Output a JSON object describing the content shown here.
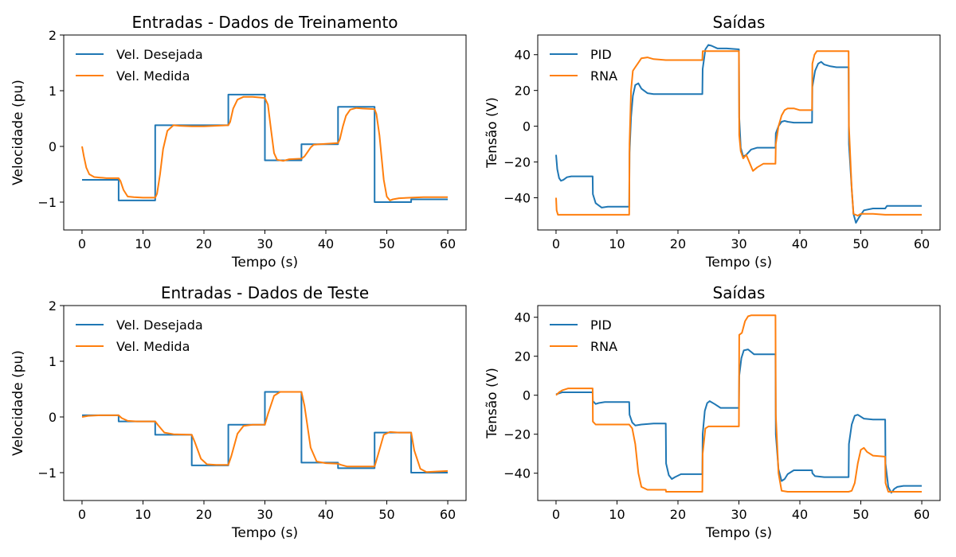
{
  "colors": {
    "series_1": "#1f77b4",
    "series_2": "#ff7f0e",
    "axes": "#000000",
    "background": "#ffffff"
  },
  "chart_data": [
    {
      "type": "line",
      "title": "Entradas - Dados de Treinamento",
      "xlabel": "Tempo (s)",
      "ylabel": "Velocidade (pu)",
      "xlim": [
        -3,
        63
      ],
      "ylim": [
        -1.5,
        2
      ],
      "xticks": [
        0,
        10,
        20,
        30,
        40,
        50,
        60
      ],
      "yticks": [
        -1,
        0,
        1,
        2
      ],
      "grid": false,
      "legend": "top-left",
      "series": [
        {
          "name": "Vel. Desejada",
          "color": "#1f77b4",
          "style": "step",
          "x": [
            0,
            6,
            12,
            24,
            30,
            36,
            42,
            48,
            54,
            60
          ],
          "y": [
            -0.6,
            -0.97,
            0.38,
            0.93,
            -0.25,
            0.04,
            0.71,
            -1.0,
            -0.95,
            -0.95
          ]
        },
        {
          "name": "Vel. Medida",
          "color": "#ff7f0e",
          "style": "line",
          "x": [
            0,
            0.3,
            0.7,
            1.2,
            2,
            3,
            4,
            6,
            6.3,
            6.8,
            7.5,
            8.5,
            10,
            12,
            12.3,
            12.8,
            13.3,
            14,
            15,
            16,
            18,
            20,
            24,
            24.3,
            24.8,
            25.5,
            26.5,
            28,
            30,
            30.5,
            31,
            31.5,
            32,
            33,
            34,
            36,
            36.5,
            37,
            37.5,
            38,
            39,
            42,
            42.3,
            42.8,
            43.3,
            44,
            45,
            46,
            48,
            48.3,
            48.8,
            49.5,
            50,
            50.5,
            51,
            52,
            54,
            56,
            58,
            60
          ],
          "y": [
            0.0,
            -0.18,
            -0.38,
            -0.5,
            -0.55,
            -0.56,
            -0.57,
            -0.57,
            -0.62,
            -0.78,
            -0.9,
            -0.91,
            -0.92,
            -0.92,
            -0.85,
            -0.5,
            -0.05,
            0.28,
            0.38,
            0.37,
            0.36,
            0.36,
            0.38,
            0.44,
            0.68,
            0.84,
            0.89,
            0.89,
            0.87,
            0.75,
            0.3,
            -0.12,
            -0.24,
            -0.26,
            -0.23,
            -0.22,
            -0.18,
            -0.1,
            -0.02,
            0.03,
            0.04,
            0.06,
            0.13,
            0.36,
            0.55,
            0.66,
            0.69,
            0.68,
            0.67,
            0.58,
            0.2,
            -0.6,
            -0.9,
            -0.97,
            -0.95,
            -0.93,
            -0.92,
            -0.91,
            -0.91,
            -0.91
          ]
        }
      ]
    },
    {
      "type": "line",
      "title": "Saídas",
      "xlabel": "Tempo (s)",
      "ylabel": "Tensão (V)",
      "xlim": [
        -3,
        63
      ],
      "ylim": [
        -58,
        51
      ],
      "xticks": [
        0,
        10,
        20,
        30,
        40,
        50,
        60
      ],
      "yticks": [
        -40,
        -20,
        0,
        20,
        40
      ],
      "grid": false,
      "legend": "top-left",
      "series": [
        {
          "name": "PID",
          "color": "#1f77b4",
          "style": "line",
          "x": [
            0,
            0.2,
            0.5,
            0.8,
            1.2,
            1.8,
            2.5,
            3.5,
            6,
            6.05,
            6.5,
            7.5,
            8.5,
            10,
            12,
            12.05,
            12.3,
            12.6,
            13,
            13.5,
            14,
            15,
            16,
            18,
            20,
            24,
            24.05,
            24.5,
            25,
            25.5,
            26.5,
            28,
            30,
            30.05,
            30.3,
            30.7,
            31.2,
            32,
            33,
            34,
            36,
            36.05,
            36.5,
            37,
            37.5,
            38,
            39,
            40,
            42,
            42.05,
            42.5,
            43,
            43.5,
            44,
            45,
            46,
            48,
            48.05,
            48.5,
            48.8,
            49.2,
            49.7,
            50.5,
            52,
            54,
            54.3,
            56,
            58,
            60
          ],
          "y": [
            -16,
            -24,
            -29,
            -30.5,
            -30,
            -28.5,
            -28,
            -28,
            -28,
            -38,
            -43,
            -45.5,
            -45,
            -45,
            -45,
            -15,
            5,
            17,
            23,
            24,
            21,
            18.5,
            18,
            18,
            18,
            18,
            32,
            43,
            45.5,
            45,
            43.5,
            43.5,
            43,
            5,
            -12,
            -17,
            -16,
            -13,
            -12,
            -12,
            -12,
            -4,
            0,
            2.5,
            3,
            2.5,
            2,
            2,
            2,
            22,
            31,
            35,
            36,
            34.5,
            33.5,
            33,
            33,
            -10,
            -35,
            -49,
            -54,
            -51,
            -47,
            -46,
            -46,
            -44.5,
            -44.5,
            -44.5,
            -44.5
          ]
        },
        {
          "name": "RNA",
          "color": "#ff7f0e",
          "style": "line",
          "x": [
            0,
            0.1,
            0.3,
            0.6,
            1,
            2,
            4,
            6,
            8,
            10,
            12,
            12.05,
            12.3,
            12.6,
            13,
            13.5,
            14,
            15,
            16,
            18,
            20,
            24,
            24.05,
            24.5,
            25,
            26,
            28,
            30,
            30.05,
            30.3,
            30.7,
            31.2,
            31.7,
            32.3,
            33,
            34,
            36,
            36.05,
            36.5,
            37,
            37.5,
            38,
            39,
            40,
            42,
            42.05,
            42.4,
            42.8,
            43.3,
            44,
            46,
            48,
            48.05,
            48.5,
            48.8,
            49.5,
            50,
            52,
            54,
            56,
            58,
            60
          ],
          "y": [
            -40,
            -47,
            -49.5,
            -49.5,
            -49.5,
            -49.5,
            -49.5,
            -49.5,
            -49.5,
            -49.5,
            -49.5,
            -10,
            20,
            31,
            33,
            35.5,
            38,
            38.5,
            37.5,
            37,
            37,
            37,
            42,
            42,
            42,
            42,
            42,
            42,
            -5,
            -14,
            -18,
            -16,
            -20,
            -25,
            -23,
            -21,
            -21,
            -10,
            0,
            6,
            9,
            10,
            10,
            9,
            9,
            35,
            40,
            42,
            42,
            42,
            42,
            42,
            0,
            -35,
            -49,
            -50,
            -49,
            -49,
            -49.5,
            -49.5,
            -49.5,
            -49.5
          ]
        }
      ]
    },
    {
      "type": "line",
      "title": "Entradas - Dados de Teste",
      "xlabel": "Tempo (s)",
      "ylabel": "Velocidade (pu)",
      "xlim": [
        -3,
        63
      ],
      "ylim": [
        -1.5,
        2
      ],
      "xticks": [
        0,
        10,
        20,
        30,
        40,
        50,
        60
      ],
      "yticks": [
        -1,
        0,
        1,
        2
      ],
      "grid": false,
      "legend": "top-left",
      "series": [
        {
          "name": "Vel. Desejada",
          "color": "#1f77b4",
          "style": "step",
          "x": [
            0,
            6,
            12,
            18,
            24,
            30,
            36,
            42,
            48,
            54,
            60
          ],
          "y": [
            0.03,
            -0.08,
            -0.32,
            -0.87,
            -0.14,
            0.45,
            -0.82,
            -0.92,
            -0.28,
            -1.0,
            -1.0
          ]
        },
        {
          "name": "Vel. Medida",
          "color": "#ff7f0e",
          "style": "line",
          "x": [
            0,
            1,
            3,
            6,
            6.5,
            7.5,
            9,
            12,
            12.5,
            13.5,
            15,
            18,
            18.5,
            19.5,
            20.5,
            22,
            24,
            24.5,
            25.5,
            26.5,
            28,
            30,
            30.5,
            31.5,
            32.5,
            34,
            36,
            36.5,
            37.5,
            38.5,
            40,
            42,
            42.5,
            43.5,
            45,
            48,
            48.5,
            49.5,
            50.5,
            52,
            54,
            54.5,
            55.5,
            56.5,
            58,
            60
          ],
          "y": [
            0.0,
            0.02,
            0.03,
            0.03,
            -0.02,
            -0.07,
            -0.08,
            -0.08,
            -0.15,
            -0.28,
            -0.31,
            -0.32,
            -0.45,
            -0.75,
            -0.85,
            -0.86,
            -0.86,
            -0.7,
            -0.3,
            -0.16,
            -0.14,
            -0.14,
            0.05,
            0.38,
            0.45,
            0.45,
            0.45,
            0.2,
            -0.55,
            -0.8,
            -0.83,
            -0.84,
            -0.86,
            -0.89,
            -0.89,
            -0.89,
            -0.7,
            -0.32,
            -0.27,
            -0.28,
            -0.28,
            -0.6,
            -0.93,
            -0.99,
            -0.98,
            -0.97
          ]
        }
      ]
    },
    {
      "type": "line",
      "title": "Saídas",
      "xlabel": "Tempo (s)",
      "ylabel": "Tensão (V)",
      "xlim": [
        -3,
        63
      ],
      "ylim": [
        -54,
        46
      ],
      "xticks": [
        0,
        10,
        20,
        30,
        40,
        50,
        60
      ],
      "yticks": [
        -40,
        -20,
        0,
        20,
        40
      ],
      "grid": false,
      "legend": "top-left",
      "series": [
        {
          "name": "PID",
          "color": "#1f77b4",
          "style": "line",
          "x": [
            0,
            0.5,
            1,
            2,
            6,
            6.05,
            6.5,
            7,
            8,
            12,
            12.05,
            12.5,
            13,
            14,
            16,
            18,
            18.05,
            18.5,
            19,
            19.5,
            20.5,
            24,
            24.05,
            24.4,
            24.8,
            25.2,
            26,
            27,
            30,
            30.05,
            30.4,
            30.8,
            31.5,
            32.5,
            36,
            36.05,
            36.5,
            37,
            37.5,
            38,
            39,
            42,
            42.05,
            42.5,
            44,
            48,
            48.05,
            48.5,
            49,
            49.5,
            50.5,
            52,
            54,
            54.05,
            54.5,
            55,
            55.5,
            56,
            57,
            58,
            60
          ],
          "y": [
            0.5,
            1,
            1.5,
            1.5,
            1.5,
            -3,
            -4.5,
            -4,
            -3.5,
            -3.5,
            -10,
            -14,
            -15.5,
            -15,
            -14.5,
            -14.5,
            -35,
            -41,
            -43,
            -42,
            -40.5,
            -40.5,
            -20,
            -8,
            -4,
            -3,
            -4.5,
            -6.5,
            -6.5,
            10,
            19,
            23,
            23.5,
            21,
            21,
            -20,
            -38,
            -44,
            -43,
            -40.5,
            -38.5,
            -38.5,
            -40,
            -41.5,
            -42,
            -42,
            -25,
            -15,
            -10.5,
            -10,
            -12,
            -12.5,
            -12.5,
            -35,
            -47,
            -50,
            -48,
            -47,
            -46.5,
            -46.5,
            -46.5
          ]
        },
        {
          "name": "RNA",
          "color": "#ff7f0e",
          "style": "line",
          "x": [
            0,
            0.5,
            1,
            2,
            4,
            6,
            6.05,
            6.5,
            8,
            10,
            12,
            12.5,
            13,
            13.5,
            14,
            15,
            16,
            18,
            18.05,
            19,
            20,
            24,
            24.05,
            24.5,
            25,
            26,
            28,
            30,
            30.05,
            30.5,
            31,
            31.5,
            32,
            33,
            36,
            36.05,
            36.5,
            37,
            38,
            40,
            42,
            44,
            46,
            48,
            48.5,
            49,
            49.5,
            50,
            50.5,
            51,
            52,
            54,
            54.05,
            54.5,
            55,
            56,
            58,
            60
          ],
          "y": [
            0,
            1.5,
            2.5,
            3.5,
            3.5,
            3.5,
            -13.5,
            -15,
            -15,
            -15,
            -15,
            -17,
            -25,
            -40,
            -47,
            -48.5,
            -48.5,
            -48.5,
            -49.5,
            -49.5,
            -49.5,
            -49.5,
            -30,
            -17,
            -16,
            -16,
            -16,
            -16,
            31,
            32,
            38,
            40.5,
            41,
            41,
            41,
            -10,
            -40,
            -49,
            -49.5,
            -49.5,
            -49.5,
            -49.5,
            -49.5,
            -49.5,
            -49,
            -45,
            -35,
            -28,
            -27,
            -29,
            -31,
            -31.5,
            -45,
            -49.5,
            -49.5,
            -49.5,
            -49.5,
            -49.5
          ]
        }
      ]
    }
  ]
}
